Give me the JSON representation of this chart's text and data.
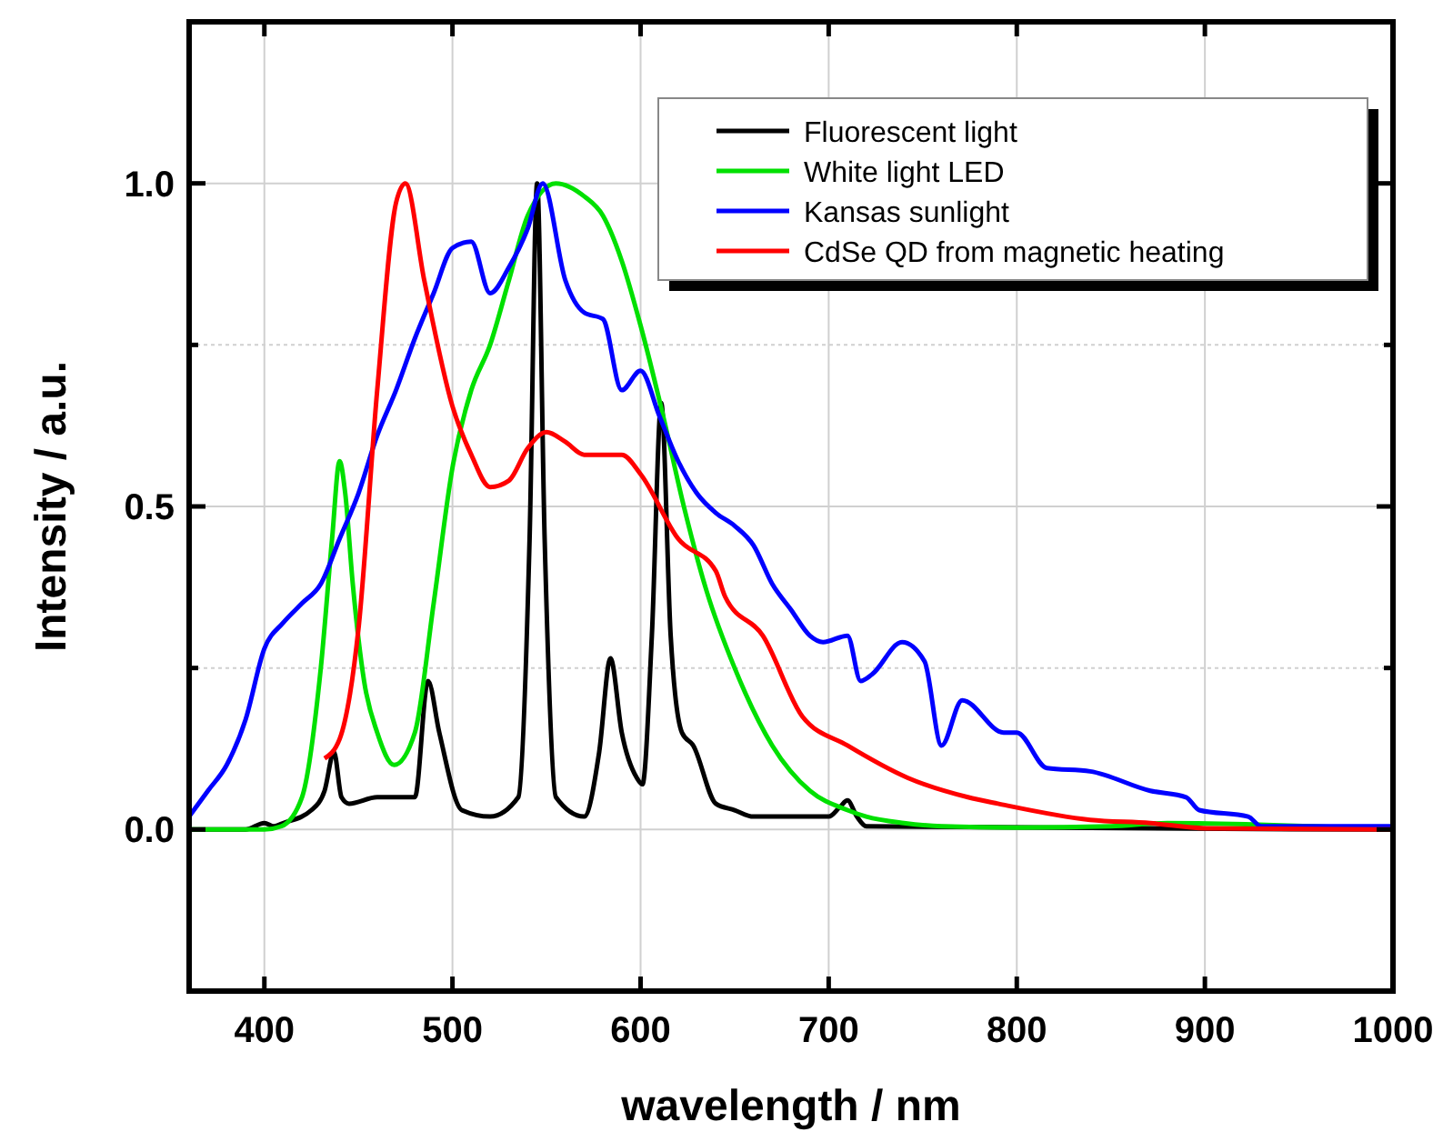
{
  "chart_data": {
    "type": "line",
    "xlabel": "wavelength / nm",
    "ylabel": "Intensity / a.u.",
    "xlim": [
      360,
      1000
    ],
    "ylim": [
      -0.25,
      1.25
    ],
    "xticks": [
      400,
      500,
      600,
      700,
      800,
      900,
      1000
    ],
    "yticks": [
      {
        "value": 0,
        "label": "0.0"
      },
      {
        "value": 0.25,
        "label": null
      },
      {
        "value": 0.5,
        "label": "0.5"
      },
      {
        "value": 0.75,
        "label": null
      },
      {
        "value": 1,
        "label": "1.0"
      }
    ],
    "grid": true,
    "legend": "top right",
    "line_style": "solid",
    "marker": "none",
    "series": [
      {
        "name": "Fluorescent light",
        "color": "#000000",
        "x": [
          360,
          390,
          400,
          405,
          410,
          425,
          432,
          437,
          441,
          445,
          460,
          480,
          487,
          493,
          505,
          520,
          535,
          541,
          545,
          549,
          555,
          570,
          578,
          584,
          590,
          598,
          601,
          606,
          611,
          616,
          622,
          628,
          640,
          650,
          660,
          700,
          706,
          710,
          715,
          720,
          1000
        ],
        "values": [
          0,
          0,
          0.01,
          0.005,
          0.01,
          0.03,
          0.06,
          0.12,
          0.05,
          0.04,
          0.05,
          0.05,
          0.23,
          0.15,
          0.03,
          0.02,
          0.05,
          0.45,
          1.0,
          0.45,
          0.05,
          0.02,
          0.12,
          0.265,
          0.15,
          0.08,
          0.07,
          0.3,
          0.66,
          0.3,
          0.15,
          0.13,
          0.04,
          0.03,
          0.02,
          0.02,
          0.035,
          0.045,
          0.02,
          0.005,
          0
        ]
      },
      {
        "name": "White light LED",
        "color": "#00e000",
        "x": [
          360,
          400,
          409,
          420,
          430,
          436,
          440,
          443,
          447,
          453,
          460,
          469,
          480,
          490,
          500,
          510,
          520,
          530,
          540,
          555,
          570,
          580,
          590,
          600,
          612,
          623,
          635,
          650,
          670,
          690,
          710,
          720,
          740,
          760,
          800,
          850,
          880,
          1000
        ],
        "values": [
          0,
          0,
          0.005,
          0.05,
          0.25,
          0.45,
          0.57,
          0.52,
          0.38,
          0.23,
          0.15,
          0.1,
          0.15,
          0.35,
          0.56,
          0.68,
          0.75,
          0.85,
          0.95,
          1.0,
          0.98,
          0.95,
          0.88,
          0.78,
          0.64,
          0.5,
          0.37,
          0.25,
          0.13,
          0.06,
          0.03,
          0.02,
          0.01,
          0.005,
          0.003,
          0.005,
          0.01,
          0
        ]
      },
      {
        "name": "Kansas sunlight",
        "color": "#0000ff",
        "x": [
          360,
          370,
          380,
          390,
          400,
          410,
          420,
          430,
          440,
          450,
          460,
          470,
          480,
          490,
          500,
          510,
          520,
          530,
          540,
          548,
          560,
          570,
          580,
          590,
          600,
          610,
          620,
          630,
          640,
          650,
          660,
          670,
          680,
          690,
          697,
          710,
          717,
          723,
          739,
          751,
          760,
          771,
          793,
          800,
          816,
          839,
          871,
          890,
          897,
          923,
          930,
          1000
        ],
        "values": [
          0.02,
          0.06,
          0.1,
          0.17,
          0.28,
          0.32,
          0.35,
          0.38,
          0.45,
          0.52,
          0.61,
          0.68,
          0.76,
          0.83,
          0.9,
          0.91,
          0.83,
          0.87,
          0.93,
          1.0,
          0.85,
          0.8,
          0.79,
          0.68,
          0.71,
          0.64,
          0.57,
          0.52,
          0.49,
          0.47,
          0.44,
          0.38,
          0.34,
          0.3,
          0.29,
          0.3,
          0.23,
          0.24,
          0.29,
          0.26,
          0.13,
          0.2,
          0.15,
          0.15,
          0.095,
          0.09,
          0.06,
          0.05,
          0.03,
          0.02,
          0.005,
          0.005
        ]
      },
      {
        "name": "CdSe QD from magnetic heating",
        "color": "#ff0000",
        "x": [
          432,
          440,
          450,
          460,
          470,
          475,
          485,
          500,
          510,
          520,
          530,
          540,
          550,
          560,
          570,
          590,
          600,
          620,
          640,
          645,
          665,
          686,
          710,
          742,
          774,
          790,
          839,
          871,
          900,
          1000
        ],
        "values": [
          0.11,
          0.14,
          0.31,
          0.68,
          0.97,
          1.0,
          0.85,
          0.655,
          0.58,
          0.53,
          0.54,
          0.59,
          0.615,
          0.6,
          0.58,
          0.58,
          0.55,
          0.45,
          0.4,
          0.36,
          0.3,
          0.175,
          0.13,
          0.08,
          0.05,
          0.04,
          0.015,
          0.01,
          0.002,
          0
        ]
      }
    ]
  }
}
